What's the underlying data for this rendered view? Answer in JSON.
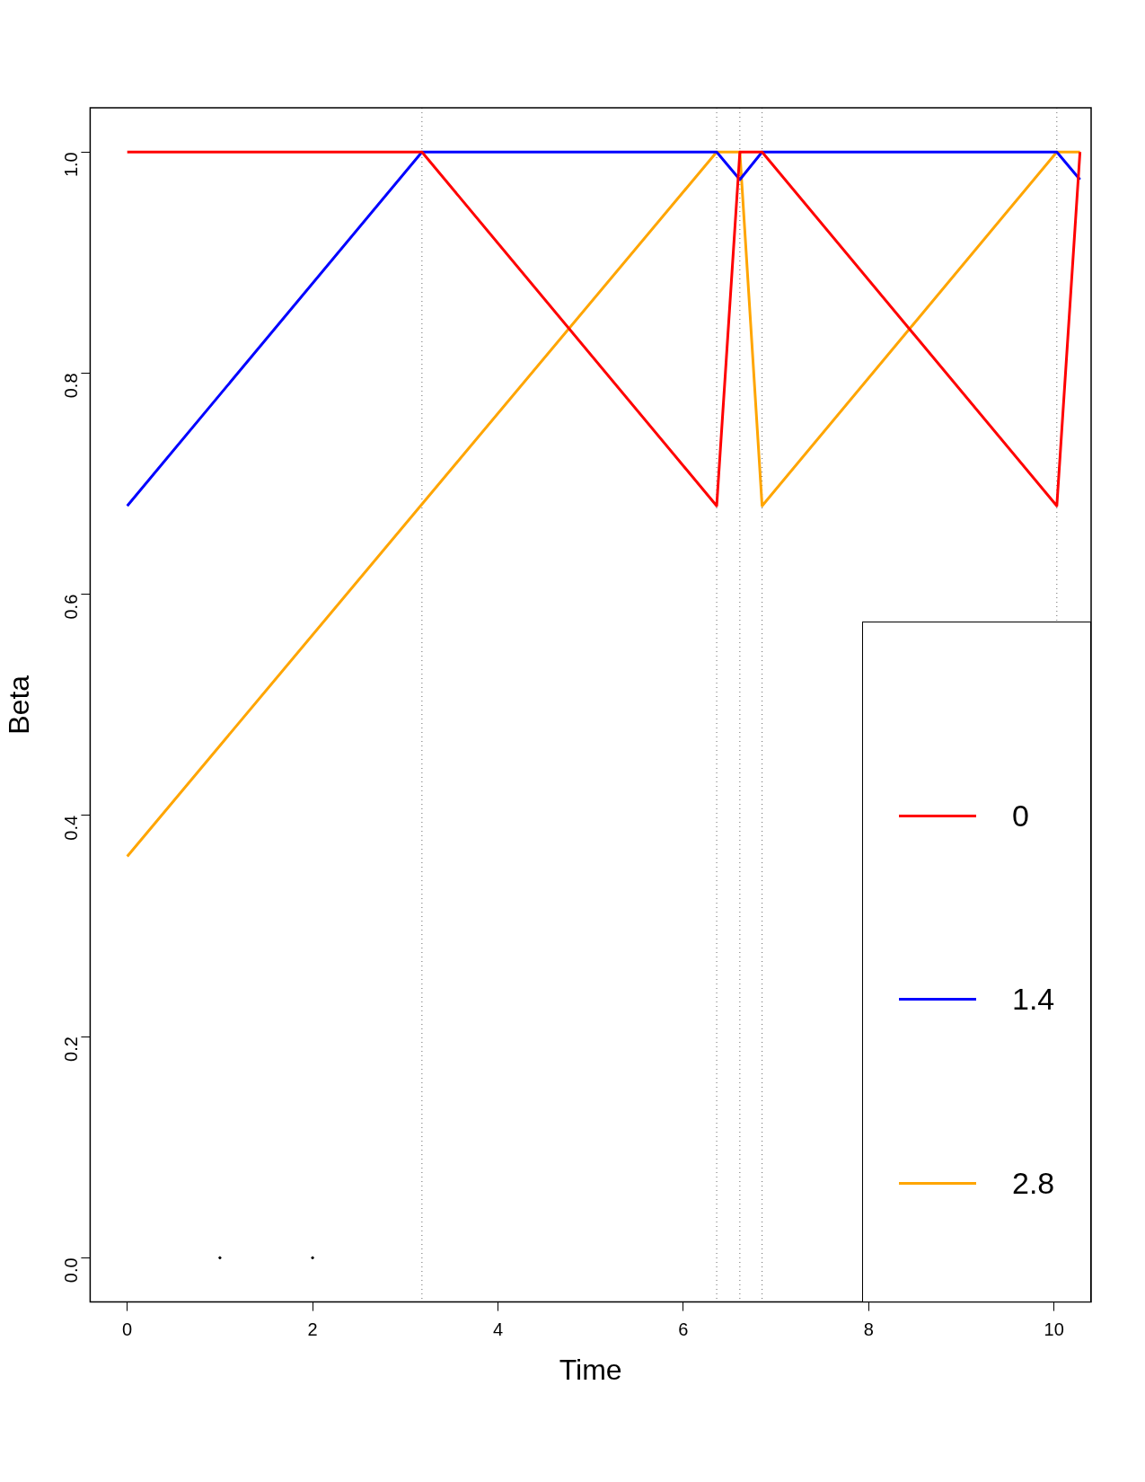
{
  "chart_data": {
    "type": "line",
    "xlabel": "Time",
    "ylabel": "Beta",
    "xlim": [
      -0.4,
      10.4
    ],
    "xticks": [
      0,
      2,
      4,
      6,
      8,
      10
    ],
    "ylim": [
      -0.04,
      1.04
    ],
    "yticks": [
      {
        "value": 0,
        "label": "0.0"
      },
      0.2,
      0.4,
      0.6,
      0.8,
      {
        "value": 1,
        "label": "1.0"
      }
    ],
    "series": [
      {
        "name": "0",
        "color": "#ff0000",
        "x": [
          0,
          3.18,
          6.36,
          6.61,
          6.85,
          10.03,
          10.28
        ],
        "values": [
          1,
          1,
          0.68,
          1,
          1,
          0.68,
          1
        ]
      },
      {
        "name": "1.4",
        "color": "#0000ff",
        "x": [
          0,
          3.18,
          6.36,
          6.61,
          6.85,
          10.03,
          10.28
        ],
        "values": [
          0.68,
          1,
          1,
          0.975,
          1,
          1,
          0.975
        ]
      },
      {
        "name": "2.8",
        "color": "#ffa500",
        "x": [
          0,
          6.36,
          6.61,
          6.85,
          10.03,
          10.28
        ],
        "values": [
          0.363,
          1,
          1,
          0.68,
          1,
          1
        ]
      },
      {
        "type": "scatter",
        "marker": "circle",
        "color": "#000000",
        "x": [
          1,
          2
        ],
        "values": [
          0,
          0
        ]
      }
    ],
    "ref_lines": [
      {
        "axis": "x",
        "value": 3.18,
        "color": "#666666",
        "line_style": "dotted"
      },
      {
        "axis": "x",
        "value": 6.36,
        "color": "#666666",
        "line_style": "dotted"
      },
      {
        "axis": "x",
        "value": 6.61,
        "color": "#666666",
        "line_style": "dotted"
      },
      {
        "axis": "x",
        "value": 6.85,
        "color": "#666666",
        "line_style": "dotted"
      },
      {
        "axis": "x",
        "value": 10.03,
        "color": "#666666",
        "line_style": "dotted"
      }
    ],
    "legend": "bottom right",
    "grid": false,
    "marker": "none",
    "line_style": "solid"
  }
}
